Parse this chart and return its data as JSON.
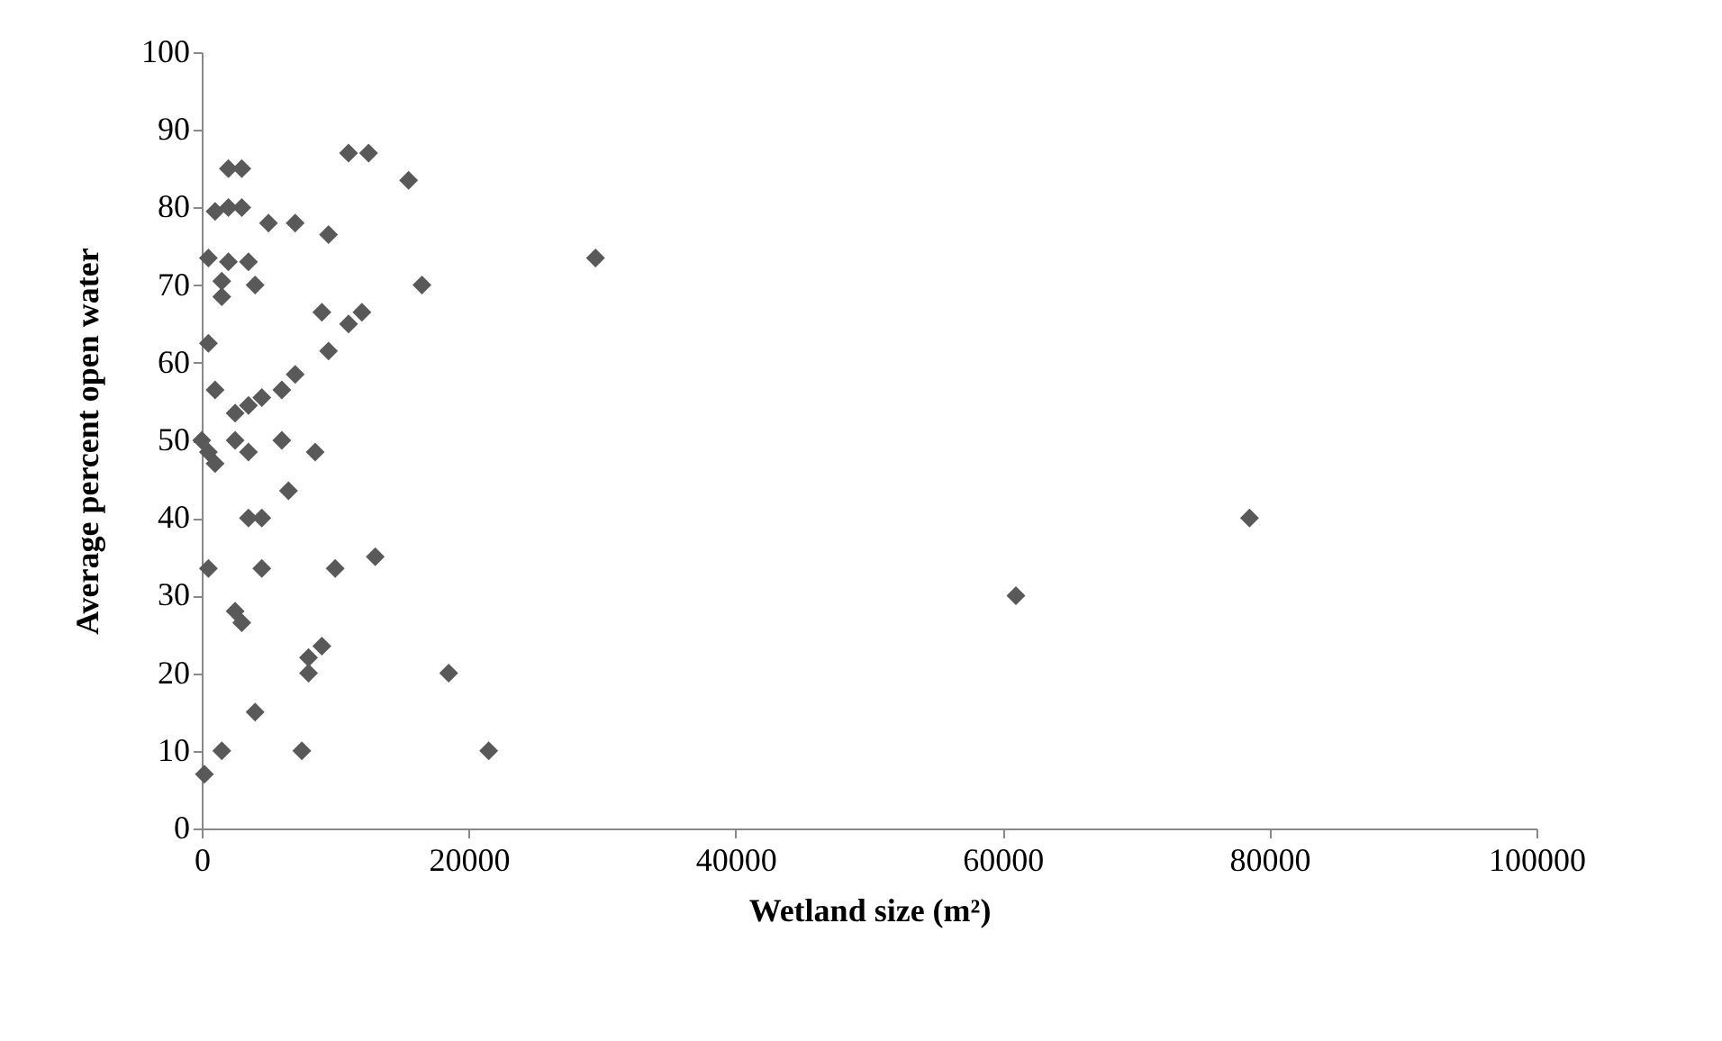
{
  "chart_data": {
    "type": "scatter",
    "xlabel": "Wetland size (m²)",
    "ylabel": "Average percent open water",
    "x": [
      200,
      1500,
      4000,
      7500,
      21500,
      18500,
      8000,
      8000,
      9000,
      2500,
      3000,
      500,
      4500,
      10000,
      13000,
      3500,
      4500,
      61000,
      78500,
      6500,
      8500,
      0,
      500,
      1000,
      2500,
      3500,
      6000,
      2500,
      3500,
      4500,
      6000,
      7000,
      1000,
      9500,
      11000,
      12000,
      9000,
      500,
      1500,
      1500,
      4000,
      16500,
      500,
      2000,
      3500,
      29500,
      9500,
      7000,
      5000,
      1000,
      2000,
      3000,
      15500,
      2000,
      3000,
      11000,
      12500
    ],
    "series": [
      {
        "color": "#595959",
        "values": [
          7,
          10,
          15,
          10,
          10,
          20,
          20,
          22,
          23.5,
          28,
          26.5,
          33.5,
          33.5,
          33.5,
          35,
          40,
          40,
          30,
          40,
          43.5,
          48.5,
          50,
          48.5,
          47,
          50,
          48.5,
          50,
          53.5,
          54.5,
          55.5,
          56.5,
          58.5,
          56.5,
          61.5,
          65,
          66.5,
          66.5,
          62.5,
          68.5,
          70.5,
          70,
          70,
          73.5,
          73,
          73,
          73.5,
          76.5,
          78,
          78,
          79.5,
          80,
          80,
          83.5,
          85,
          85,
          87,
          87
        ]
      }
    ],
    "xlim": [
      0,
      100000
    ],
    "xticks": [
      0,
      20000,
      40000,
      60000,
      80000,
      100000
    ],
    "ylim": [
      0,
      100
    ],
    "yticks": [
      0,
      10,
      20,
      30,
      40,
      50,
      60,
      70,
      80,
      90,
      100
    ],
    "grid": false,
    "marker": "diamond"
  }
}
